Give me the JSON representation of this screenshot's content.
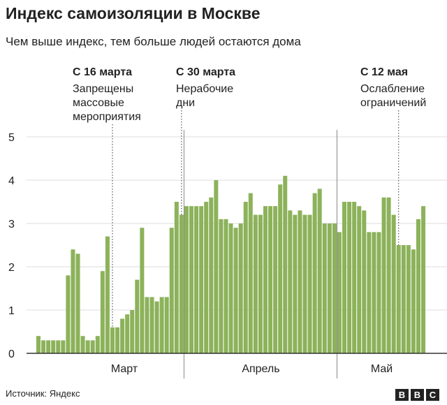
{
  "title": "Индекс самоизоляции в Москве",
  "subtitle": "Чем выше индекс, тем больше людей остаются дома",
  "source": "Источник: Яндекс",
  "logo": "BBC",
  "colors": {
    "bar": "#8cb25a",
    "text": "#222222",
    "grid": "#dddddd",
    "axis": "#333333",
    "divider": "#888888"
  },
  "chart_data": {
    "type": "bar",
    "title": "Индекс самоизоляции в Москве",
    "subtitle": "Чем выше индекс, тем больше людей остаются дома",
    "ylim": [
      0,
      5
    ],
    "yticks": [
      0,
      1,
      2,
      3,
      4,
      5
    ],
    "grid": true,
    "months": [
      {
        "label": "Март"
      },
      {
        "label": "Апрель"
      },
      {
        "label": "Май"
      }
    ],
    "annotations": [
      {
        "date": "С 16 марта",
        "lines": [
          "Запрещены",
          "массовые",
          "мероприятия"
        ]
      },
      {
        "date": "С 30 марта",
        "lines": [
          "Нерабочие",
          "дни"
        ]
      },
      {
        "date": "С 12 мая",
        "lines": [
          "Ослабление",
          "ограничений"
        ]
      }
    ],
    "values": [
      0.4,
      0.3,
      0.3,
      0.3,
      0.3,
      0.3,
      1.8,
      2.4,
      2.3,
      0.4,
      0.3,
      0.3,
      0.4,
      1.9,
      2.7,
      0.6,
      0.6,
      0.8,
      0.9,
      1.0,
      1.7,
      2.9,
      1.3,
      1.3,
      1.2,
      1.3,
      1.3,
      2.9,
      3.5,
      3.2,
      3.4,
      3.4,
      3.4,
      3.4,
      3.5,
      3.6,
      4.0,
      3.1,
      3.1,
      3.0,
      2.9,
      3.0,
      3.5,
      3.7,
      3.2,
      3.2,
      3.4,
      3.4,
      3.4,
      3.9,
      4.1,
      3.3,
      3.2,
      3.3,
      3.2,
      3.2,
      3.7,
      3.8,
      3.0,
      3.0,
      3.0,
      2.8,
      3.5,
      3.5,
      3.5,
      3.4,
      3.3,
      2.8,
      2.8,
      2.8,
      3.6,
      3.6,
      3.2,
      2.5,
      2.5,
      2.5,
      2.4,
      3.1,
      3.4
    ]
  }
}
